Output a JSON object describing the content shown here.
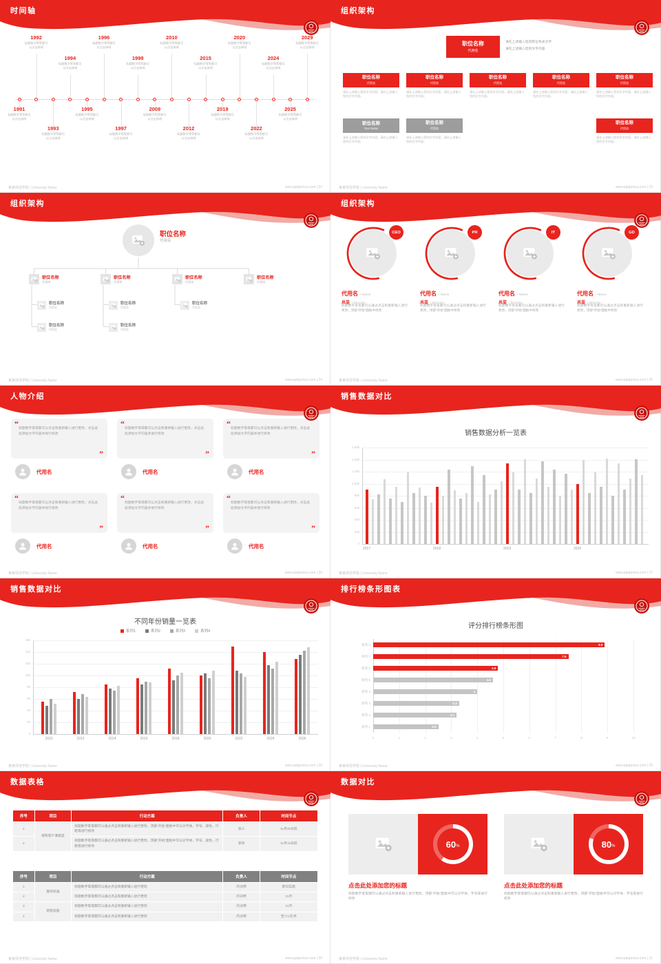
{
  "theme": {
    "accent": "#e8241e",
    "seal": "#c8130e",
    "gray_box": "#9d9d9d",
    "bar_grays": [
      "#c6c6c6",
      "#d9d9d9"
    ],
    "hbar_gray": "#c4c4c4"
  },
  "footer": {
    "left": "某某师范学院 | University Name",
    "site": "www.pptgenius.com"
  },
  "slides": [
    {
      "key": "timeline",
      "page": "22",
      "title": "时间轴",
      "caption": [
        "标题数字等等都可",
        "以点击修改"
      ],
      "items": [
        {
          "year": "1991",
          "side": "bottom",
          "lvl": 0
        },
        {
          "year": "1992",
          "side": "top",
          "lvl": 1
        },
        {
          "year": "1993",
          "side": "bottom",
          "lvl": 1
        },
        {
          "year": "1994",
          "side": "top",
          "lvl": 0
        },
        {
          "year": "1995",
          "side": "bottom",
          "lvl": 0
        },
        {
          "year": "1996",
          "side": "top",
          "lvl": 1
        },
        {
          "year": "1997",
          "side": "bottom",
          "lvl": 1
        },
        {
          "year": "1998",
          "side": "top",
          "lvl": 0
        },
        {
          "year": "2009",
          "side": "bottom",
          "lvl": 0
        },
        {
          "year": "2010",
          "side": "top",
          "lvl": 1
        },
        {
          "year": "2012",
          "side": "bottom",
          "lvl": 1
        },
        {
          "year": "2015",
          "side": "top",
          "lvl": 0
        },
        {
          "year": "2019",
          "side": "bottom",
          "lvl": 0
        },
        {
          "year": "2020",
          "side": "top",
          "lvl": 1
        },
        {
          "year": "2022",
          "side": "bottom",
          "lvl": 1
        },
        {
          "year": "2024",
          "side": "top",
          "lvl": 0
        },
        {
          "year": "2025",
          "side": "bottom",
          "lvl": 0
        },
        {
          "year": "2029",
          "side": "top",
          "lvl": 1
        }
      ]
    },
    {
      "key": "org_boxes",
      "page": "23",
      "title": "组织架构",
      "top_box": {
        "title": "职位名称",
        "sub": "代用名"
      },
      "side_lines": [
        "请在上述输入您的职位有关文字",
        "请在上述输入您的文字内容"
      ],
      "caption": "请在上述输入您的文字内容，请在上述输入您的文字内容。",
      "row1": [
        {
          "title": "职位名称",
          "sub": "代用名"
        },
        {
          "title": "职位名称",
          "sub": "代用名"
        },
        {
          "title": "职位名称",
          "sub": "代用名"
        },
        {
          "title": "职位名称",
          "sub": "代用名"
        },
        {
          "title": "职位名称",
          "sub": "代用名"
        }
      ],
      "row2": [
        {
          "title": "职位名称",
          "sub": "Your Name",
          "color": "gray"
        },
        {
          "title": "职位名称",
          "sub": "代用名",
          "color": "gray"
        },
        null,
        null,
        {
          "title": "职位名称",
          "sub": "代用名",
          "color": "red"
        }
      ]
    },
    {
      "key": "org_tree",
      "page": "24",
      "title": "组织架构",
      "root": {
        "title": "职位名称",
        "sub": "代用名"
      },
      "branches": [
        {
          "title": "职位名称",
          "sub": "代用名",
          "subs": 2
        },
        {
          "title": "职位名称",
          "sub": "代用名",
          "subs": 2
        },
        {
          "title": "职位名称",
          "sub": "代用名",
          "subs": 1
        },
        {
          "title": "职位名称",
          "sub": "代用名",
          "subs": 0
        }
      ],
      "sub_item": {
        "title": "职位名称",
        "sub": "代用名"
      }
    },
    {
      "key": "org_circles",
      "page": "25",
      "title": "组织架构",
      "badges": [
        "CEO",
        "PR",
        "IT",
        "GD"
      ],
      "name": "代用名",
      "name_en": "/ Name",
      "role": "总监",
      "role_en": "/ Director",
      "para": "标题数字等等都可以通过点击和重新输入进行更改，顶部“开始”面板中修改"
    },
    {
      "key": "people",
      "page": "26",
      "title": "人物介绍",
      "name": "代用名",
      "count": 6,
      "quote": "标题数字等等都可以点击和重新输入进行更改，点击此处添加文字内容并进行修改"
    },
    {
      "key": "chart_monthly",
      "page": "27",
      "title": "销售数据对比",
      "chart_data": {
        "type": "bar",
        "title": "销售数据分析一览表",
        "y_labels": [
          "0",
          "200",
          "400",
          "600",
          "800",
          "1,000",
          "1,200",
          "1,400",
          "1,600"
        ],
        "ymax": 1600,
        "x_groups": [
          "2017",
          "2018",
          "2019",
          "2020"
        ],
        "red_indices": [
          0,
          12,
          24,
          36
        ],
        "values": [
          900,
          740,
          820,
          1080,
          760,
          950,
          700,
          1190,
          850,
          940,
          800,
          690,
          950,
          800,
          1240,
          890,
          760,
          850,
          1290,
          700,
          1140,
          820,
          900,
          1040,
          1340,
          1190,
          900,
          1410,
          850,
          1090,
          1370,
          950,
          1240,
          800,
          1170,
          900,
          1000,
          1390,
          850,
          1190,
          950,
          1420,
          800,
          1340,
          900,
          1090,
          1410,
          1140
        ]
      }
    },
    {
      "key": "chart_grouped",
      "page": "28",
      "title": "销售数据对比",
      "chart_data": {
        "type": "bar",
        "title": "不同年份销量一览表",
        "categories": [
          "2010",
          "2012",
          "2014",
          "2016",
          "2018",
          "2020",
          "2022",
          "2024",
          "2026"
        ],
        "y_labels": [
          "0",
          "20",
          "40",
          "60",
          "80",
          "100",
          "120",
          "140",
          "160"
        ],
        "ymax": 160,
        "series": [
          {
            "name": "系列1",
            "color": "#e8241e",
            "values": [
              55,
              72,
              85,
              95,
              112,
              100,
              150,
              140,
              128
            ]
          },
          {
            "name": "系列2",
            "color": "#7a7a7a",
            "values": [
              48,
              60,
              78,
              85,
              92,
              104,
              108,
              118,
              135
            ]
          },
          {
            "name": "系列3",
            "color": "#a8a8a8",
            "values": [
              60,
              68,
              74,
              90,
              100,
              95,
              103,
              112,
              142
            ]
          },
          {
            "name": "系列4",
            "color": "#cfcfcf",
            "values": [
              52,
              64,
              82,
              88,
              105,
              108,
              98,
              124,
              148
            ]
          }
        ]
      }
    },
    {
      "key": "chart_rank",
      "page": "29",
      "title": "排行榜条形图表",
      "chart_data": {
        "type": "bar",
        "orientation": "horizontal",
        "title": "评分排行榜条形图",
        "categories": [
          "系列 8",
          "系列 7",
          "系列 6",
          "系列 5",
          "系列 4",
          "系列 3",
          "系列 2",
          "系列 1"
        ],
        "values": [
          8.9,
          7.5,
          4.8,
          4.6,
          4,
          3.3,
          3.2,
          2.5
        ],
        "value_labels": [
          "8.9",
          "7.5",
          "4.8",
          "4.6",
          "4",
          "3.3",
          "3.2",
          "2.5"
        ],
        "red_count": 3,
        "xmax": 10,
        "x_labels": [
          "0",
          "1",
          "2",
          "3",
          "4",
          "5",
          "6",
          "7",
          "8",
          "9",
          "10"
        ]
      }
    },
    {
      "key": "tables",
      "page": "30",
      "title": "数据表格",
      "long_text": "标题数字等等都可以通过点击和重新输入进行更改，顶部“开始”面板中可以对字体、字号、颜色、行距等进行修改",
      "short_text": "标题数字等等都可以通过点击和重新输入进行更改",
      "table1": {
        "header": [
          "序号",
          "项目",
          "行动方案",
          "负责人",
          "时间节点"
        ],
        "rows": [
          [
            {
              "t": "1"
            },
            {
              "t": "保有客户满意度",
              "rowspan": 2
            },
            {
              "t": "@long",
              "align": "left"
            },
            {
              "t": "张三"
            },
            {
              "t": "11月30日前"
            }
          ],
          [
            {
              "t": "2"
            },
            null,
            {
              "t": "@long",
              "align": "left"
            },
            {
              "t": "李四"
            },
            {
              "t": "11月15日前"
            }
          ]
        ]
      },
      "table2": {
        "header": [
          "序号",
          "项目",
          "行动方案",
          "负责人",
          "时间节点"
        ],
        "rows": [
          [
            {
              "t": "1"
            },
            {
              "t": "服务标准",
              "rowspan": 2
            },
            {
              "t": "@short",
              "align": "left"
            },
            {
              "t": "内训师"
            },
            {
              "t": "即日实施"
            }
          ],
          [
            {
              "t": "2"
            },
            null,
            {
              "t": "@short",
              "align": "left"
            },
            {
              "t": "内训师"
            },
            {
              "t": "11月"
            }
          ],
          [
            {
              "t": "3"
            },
            {
              "t": "销售技能",
              "rowspan": 2
            },
            {
              "t": "@short",
              "align": "left"
            },
            {
              "t": "内训师"
            },
            {
              "t": "11月"
            }
          ],
          [
            {
              "t": "4"
            },
            null,
            {
              "t": "@short",
              "align": "left"
            },
            {
              "t": "内训师"
            },
            {
              "t": "至少1次/月"
            }
          ]
        ]
      }
    },
    {
      "key": "compare",
      "page": "31",
      "title": "数据对比",
      "cards": [
        {
          "pct": 60,
          "pct_text": "60",
          "unit": "%",
          "title": "点击此处添加您的标题",
          "text": "标题数字等等都可以通过点击和重新输入进行更改，顶部“开始”面板中可以对字体、字号等进行修改"
        },
        {
          "pct": 80,
          "pct_text": "80",
          "unit": "%",
          "title": "点击此处添加您的标题",
          "text": "标题数字等等都可以通过点击和重新输入进行更改，顶部“开始”面板中可以对字体、字号等进行修改"
        }
      ]
    }
  ]
}
